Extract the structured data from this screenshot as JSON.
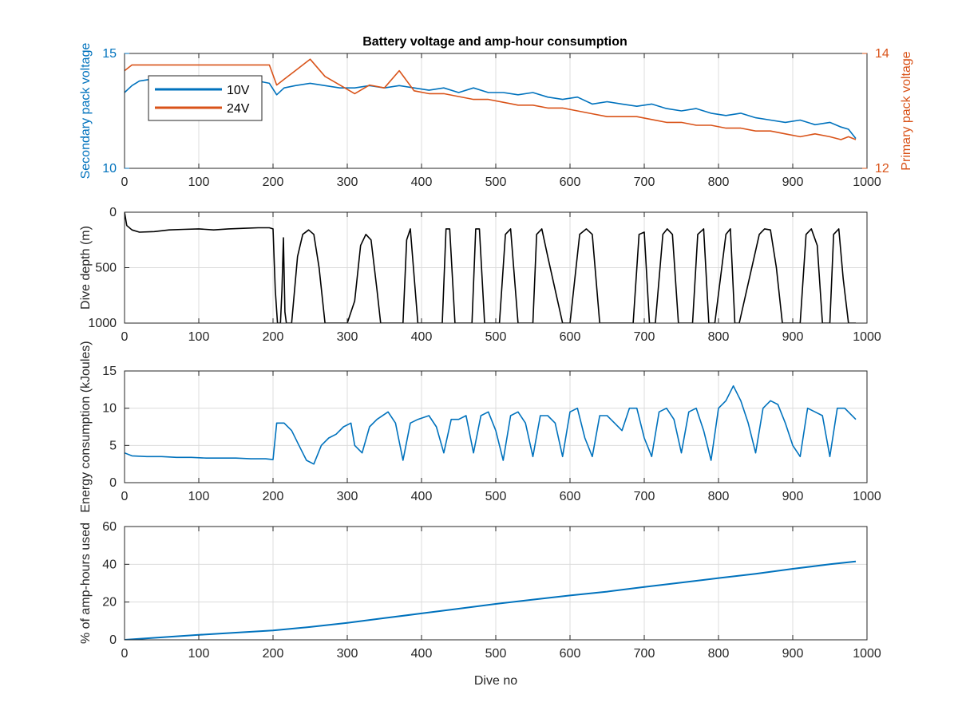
{
  "figure": {
    "title": "Battery voltage and amp-hour consumption"
  },
  "colors": {
    "series_10v": "#0072BD",
    "series_24v": "#D95319",
    "depth": "#000000",
    "energy": "#0072BD",
    "amphours": "#0072BD",
    "grid": "#dcdcdc",
    "axis": "#262626"
  },
  "chart_data": [
    {
      "type": "line",
      "title": "Battery voltage and amp-hour consumption",
      "xlabel": "",
      "ylabel": "Secondary pack voltage",
      "ylabel_right": "Primary pack voltage",
      "xlim": [
        0,
        1000
      ],
      "ylim": [
        10,
        15
      ],
      "ylim_right": [
        12,
        14
      ],
      "xticks": [
        "0",
        "100",
        "200",
        "300",
        "400",
        "500",
        "600",
        "700",
        "800",
        "900",
        "1000"
      ],
      "yticks": [
        "10",
        "15"
      ],
      "yticks_right": [
        "12",
        "14"
      ],
      "grid": true,
      "legend": "top-left",
      "series": [
        {
          "name": "10V",
          "axis": "left",
          "x": [
            0,
            10,
            20,
            40,
            60,
            80,
            100,
            120,
            140,
            160,
            180,
            195,
            205,
            215,
            230,
            250,
            270,
            290,
            310,
            330,
            350,
            370,
            390,
            410,
            430,
            450,
            470,
            490,
            510,
            530,
            550,
            570,
            590,
            610,
            630,
            650,
            670,
            690,
            710,
            730,
            750,
            770,
            790,
            810,
            830,
            850,
            870,
            890,
            910,
            930,
            950,
            965,
            975,
            985
          ],
          "values": [
            13.3,
            13.6,
            13.8,
            13.9,
            13.8,
            13.8,
            13.8,
            13.7,
            13.8,
            13.7,
            13.8,
            13.7,
            13.2,
            13.5,
            13.6,
            13.7,
            13.6,
            13.5,
            13.5,
            13.6,
            13.5,
            13.6,
            13.5,
            13.4,
            13.5,
            13.3,
            13.5,
            13.3,
            13.3,
            13.2,
            13.3,
            13.1,
            13.0,
            13.1,
            12.8,
            12.9,
            12.8,
            12.7,
            12.8,
            12.6,
            12.5,
            12.6,
            12.4,
            12.3,
            12.4,
            12.2,
            12.1,
            12.0,
            12.1,
            11.9,
            12.0,
            11.8,
            11.7,
            11.3
          ]
        },
        {
          "name": "24V",
          "axis": "right",
          "x": [
            0,
            10,
            20,
            40,
            60,
            80,
            100,
            120,
            140,
            160,
            180,
            195,
            205,
            215,
            230,
            250,
            270,
            290,
            310,
            330,
            350,
            370,
            390,
            410,
            430,
            450,
            470,
            490,
            510,
            530,
            550,
            570,
            590,
            610,
            630,
            650,
            670,
            690,
            710,
            730,
            750,
            770,
            790,
            810,
            830,
            850,
            870,
            890,
            910,
            930,
            950,
            965,
            975,
            985
          ],
          "values": [
            13.7,
            13.8,
            13.8,
            13.8,
            13.8,
            13.8,
            13.8,
            13.8,
            13.8,
            13.8,
            13.8,
            13.8,
            13.45,
            13.55,
            13.7,
            13.9,
            13.6,
            13.45,
            13.3,
            13.45,
            13.4,
            13.7,
            13.35,
            13.3,
            13.3,
            13.25,
            13.2,
            13.2,
            13.15,
            13.1,
            13.1,
            13.05,
            13.05,
            13.0,
            12.95,
            12.9,
            12.9,
            12.9,
            12.85,
            12.8,
            12.8,
            12.75,
            12.75,
            12.7,
            12.7,
            12.65,
            12.65,
            12.6,
            12.55,
            12.6,
            12.55,
            12.5,
            12.55,
            12.5
          ]
        }
      ]
    },
    {
      "type": "line",
      "xlabel": "",
      "ylabel": "Dive depth (m)",
      "xlim": [
        0,
        1000
      ],
      "ylim": [
        0,
        1000
      ],
      "y_reversed": true,
      "xticks": [
        "0",
        "100",
        "200",
        "300",
        "400",
        "500",
        "600",
        "700",
        "800",
        "900",
        "1000"
      ],
      "yticks": [
        "0",
        "500",
        "1000"
      ],
      "grid": true,
      "series": [
        {
          "x": [
            0,
            3,
            10,
            20,
            40,
            60,
            80,
            100,
            120,
            140,
            160,
            180,
            195,
            200,
            203,
            206,
            210,
            212,
            214,
            216,
            218,
            225,
            233,
            240,
            248,
            255,
            262,
            270,
            300,
            310,
            318,
            325,
            332,
            340,
            345,
            375,
            380,
            385,
            395,
            428,
            433,
            438,
            445,
            468,
            473,
            478,
            485,
            505,
            513,
            520,
            530,
            550,
            555,
            562,
            570,
            590,
            600,
            613,
            622,
            630,
            640,
            685,
            693,
            700,
            707,
            715,
            725,
            731,
            738,
            746,
            765,
            772,
            780,
            787,
            795,
            810,
            816,
            822,
            828,
            855,
            862,
            870,
            878,
            886,
            910,
            918,
            925,
            933,
            940,
            950,
            955,
            962,
            968,
            975,
            985
          ],
          "values": [
            0,
            120,
            160,
            180,
            175,
            160,
            155,
            150,
            160,
            150,
            145,
            140,
            140,
            150,
            700,
            1000,
            1000,
            700,
            230,
            900,
            1000,
            1000,
            400,
            200,
            160,
            200,
            500,
            1000,
            1000,
            800,
            300,
            200,
            250,
            700,
            1000,
            1000,
            250,
            150,
            1000,
            1000,
            150,
            150,
            1000,
            1000,
            150,
            150,
            1000,
            1000,
            200,
            150,
            1000,
            1000,
            200,
            150,
            400,
            1000,
            1000,
            200,
            150,
            200,
            1000,
            1000,
            200,
            180,
            1000,
            1000,
            200,
            150,
            200,
            1000,
            1000,
            200,
            150,
            1000,
            1000,
            200,
            150,
            1000,
            1000,
            200,
            150,
            160,
            500,
            1000,
            1000,
            200,
            150,
            300,
            1000,
            1000,
            200,
            150,
            600,
            1000,
            1000
          ]
        }
      ]
    },
    {
      "type": "line",
      "xlabel": "",
      "ylabel": "Energy consumption (kJoules)",
      "xlim": [
        0,
        1000
      ],
      "ylim": [
        0,
        15
      ],
      "xticks": [
        "0",
        "100",
        "200",
        "300",
        "400",
        "500",
        "600",
        "700",
        "800",
        "900",
        "1000"
      ],
      "yticks": [
        "0",
        "5",
        "10",
        "15"
      ],
      "grid": true,
      "series": [
        {
          "x": [
            0,
            10,
            30,
            50,
            70,
            90,
            110,
            130,
            150,
            170,
            190,
            200,
            205,
            215,
            225,
            235,
            245,
            255,
            265,
            275,
            285,
            295,
            305,
            310,
            320,
            330,
            340,
            355,
            365,
            375,
            385,
            395,
            410,
            420,
            430,
            440,
            450,
            460,
            470,
            480,
            490,
            500,
            510,
            520,
            530,
            540,
            550,
            560,
            570,
            580,
            590,
            600,
            610,
            620,
            630,
            640,
            650,
            660,
            670,
            680,
            690,
            700,
            710,
            720,
            730,
            740,
            750,
            760,
            770,
            780,
            790,
            800,
            810,
            820,
            830,
            840,
            850,
            860,
            870,
            880,
            890,
            900,
            910,
            920,
            930,
            940,
            950,
            960,
            970,
            985
          ],
          "values": [
            4,
            3.6,
            3.5,
            3.5,
            3.4,
            3.4,
            3.3,
            3.3,
            3.3,
            3.2,
            3.2,
            3.1,
            8,
            8,
            7,
            5,
            3,
            2.5,
            5,
            6,
            6.5,
            7.5,
            8,
            5,
            4,
            7.5,
            8.5,
            9.5,
            8,
            3,
            8,
            8.5,
            9,
            7.5,
            4,
            8.5,
            8.5,
            9,
            4,
            9,
            9.5,
            7,
            3,
            9,
            9.5,
            8,
            3.5,
            9,
            9,
            8,
            3.5,
            9.5,
            10,
            6,
            3.5,
            9,
            9,
            8,
            7,
            10,
            10,
            6,
            3.5,
            9.5,
            10,
            8.5,
            4,
            9.5,
            10,
            7,
            3,
            10,
            11,
            13,
            11,
            8,
            4,
            10,
            11,
            10.5,
            8,
            5,
            3.5,
            10,
            9.5,
            9,
            3.5,
            10,
            10,
            8.5
          ]
        }
      ]
    },
    {
      "type": "line",
      "xlabel": "Dive no",
      "ylabel": "% of amp-hours used",
      "xlim": [
        0,
        1000
      ],
      "ylim": [
        0,
        60
      ],
      "xticks": [
        "0",
        "100",
        "200",
        "300",
        "400",
        "500",
        "600",
        "700",
        "800",
        "900",
        "1000"
      ],
      "yticks": [
        "0",
        "20",
        "40",
        "60"
      ],
      "grid": true,
      "series": [
        {
          "x": [
            0,
            50,
            100,
            150,
            200,
            250,
            300,
            350,
            400,
            450,
            500,
            550,
            600,
            650,
            700,
            750,
            800,
            850,
            900,
            950,
            985
          ],
          "values": [
            0,
            1.3,
            2.6,
            3.8,
            5,
            6.8,
            9,
            11.5,
            14,
            16.5,
            19,
            21.3,
            23.5,
            25.5,
            28,
            30.3,
            32.7,
            35,
            37.6,
            40,
            41.5
          ]
        }
      ]
    }
  ]
}
